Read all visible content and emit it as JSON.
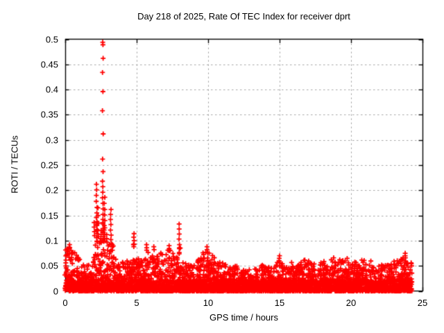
{
  "chart_data": {
    "type": "scatter",
    "title": "Day 218 of 2025, Rate Of TEC Index for receiver dprt",
    "xlabel": "GPS time / hours",
    "ylabel": "ROTI / TECUs",
    "xlim": [
      0,
      25
    ],
    "ylim": [
      0,
      0.5
    ],
    "xticks": [
      0,
      5,
      10,
      15,
      20,
      25
    ],
    "xtick_labels": [
      "0",
      "5",
      "10",
      "15",
      "20",
      "25"
    ],
    "yticks": [
      0,
      0.05,
      0.1,
      0.15,
      0.2,
      0.25,
      0.3,
      0.35,
      0.4,
      0.45,
      0.5
    ],
    "ytick_labels": [
      "0",
      "0.05",
      "0.1",
      "0.15",
      "0.2",
      "0.25",
      "0.3",
      "0.35",
      "0.4",
      "0.45",
      "0.5"
    ],
    "grid": true,
    "grid_style": "dashed",
    "legend": "none",
    "marker_symbol": "+",
    "marker_color": "#ff0000",
    "grid_color": "#a6a6a6",
    "axis_color": "#000000",
    "data_extent_hours": [
      0,
      24.25
    ],
    "dense_band": {
      "description": "Continuous dense scatter of ROTI values for all epochs/satellites; solid from 0 up to roughly half the envelope, thinning toward the envelope top.",
      "envelope": [
        [
          0.0,
          0.07
        ],
        [
          0.1,
          0.085
        ],
        [
          0.3,
          0.09
        ],
        [
          0.5,
          0.08
        ],
        [
          0.7,
          0.075
        ],
        [
          0.9,
          0.07
        ],
        [
          1.1,
          0.06
        ],
        [
          1.4,
          0.05
        ],
        [
          1.7,
          0.055
        ],
        [
          1.9,
          0.075
        ],
        [
          2.05,
          0.12
        ],
        [
          2.2,
          0.15
        ],
        [
          2.35,
          0.12
        ],
        [
          2.5,
          0.1
        ],
        [
          2.63,
          0.14
        ],
        [
          2.75,
          0.12
        ],
        [
          2.9,
          0.1
        ],
        [
          3.05,
          0.09
        ],
        [
          3.2,
          0.11
        ],
        [
          3.35,
          0.09
        ],
        [
          3.5,
          0.065
        ],
        [
          3.8,
          0.055
        ],
        [
          4.1,
          0.06
        ],
        [
          4.4,
          0.055
        ],
        [
          4.65,
          0.07
        ],
        [
          4.8,
          0.09
        ],
        [
          4.95,
          0.075
        ],
        [
          5.2,
          0.06
        ],
        [
          5.5,
          0.06
        ],
        [
          5.7,
          0.085
        ],
        [
          5.9,
          0.065
        ],
        [
          6.2,
          0.08
        ],
        [
          6.4,
          0.065
        ],
        [
          6.6,
          0.08
        ],
        [
          6.9,
          0.07
        ],
        [
          7.1,
          0.08
        ],
        [
          7.3,
          0.085
        ],
        [
          7.5,
          0.075
        ],
        [
          7.7,
          0.065
        ],
        [
          7.9,
          0.08
        ],
        [
          8.0,
          0.085
        ],
        [
          8.2,
          0.065
        ],
        [
          8.5,
          0.05
        ],
        [
          8.8,
          0.05
        ],
        [
          9.1,
          0.055
        ],
        [
          9.4,
          0.065
        ],
        [
          9.7,
          0.08
        ],
        [
          9.9,
          0.085
        ],
        [
          10.1,
          0.08
        ],
        [
          10.3,
          0.07
        ],
        [
          10.6,
          0.06
        ],
        [
          10.9,
          0.055
        ],
        [
          11.2,
          0.05
        ],
        [
          11.5,
          0.045
        ],
        [
          11.8,
          0.05
        ],
        [
          12.1,
          0.045
        ],
        [
          12.4,
          0.04
        ],
        [
          12.7,
          0.045
        ],
        [
          13.0,
          0.05
        ],
        [
          13.3,
          0.045
        ],
        [
          13.6,
          0.05
        ],
        [
          13.9,
          0.055
        ],
        [
          14.2,
          0.045
        ],
        [
          14.5,
          0.05
        ],
        [
          14.8,
          0.055
        ],
        [
          15.0,
          0.065
        ],
        [
          15.2,
          0.055
        ],
        [
          15.5,
          0.05
        ],
        [
          15.8,
          0.055
        ],
        [
          16.1,
          0.06
        ],
        [
          16.4,
          0.055
        ],
        [
          16.6,
          0.06
        ],
        [
          16.9,
          0.065
        ],
        [
          17.2,
          0.055
        ],
        [
          17.5,
          0.06
        ],
        [
          17.8,
          0.055
        ],
        [
          18.1,
          0.06
        ],
        [
          18.4,
          0.055
        ],
        [
          18.7,
          0.065
        ],
        [
          19.0,
          0.055
        ],
        [
          19.3,
          0.06
        ],
        [
          19.6,
          0.065
        ],
        [
          19.9,
          0.055
        ],
        [
          20.2,
          0.06
        ],
        [
          20.5,
          0.055
        ],
        [
          20.8,
          0.06
        ],
        [
          21.1,
          0.055
        ],
        [
          21.4,
          0.06
        ],
        [
          21.7,
          0.055
        ],
        [
          22.0,
          0.055
        ],
        [
          22.3,
          0.05
        ],
        [
          22.6,
          0.055
        ],
        [
          22.9,
          0.055
        ],
        [
          23.2,
          0.06
        ],
        [
          23.5,
          0.065
        ],
        [
          23.8,
          0.07
        ],
        [
          24.0,
          0.065
        ],
        [
          24.25,
          0.055
        ]
      ]
    },
    "outlier_spikes": [
      {
        "hour": 0.3,
        "values": [
          0.092,
          0.087
        ]
      },
      {
        "hour": 2.05,
        "values": [
          0.136,
          0.127,
          0.118,
          0.11
        ]
      },
      {
        "hour": 2.2,
        "values": [
          0.212,
          0.201,
          0.19,
          0.178,
          0.166,
          0.155,
          0.146,
          0.138,
          0.13,
          0.122,
          0.114,
          0.106,
          0.099
        ]
      },
      {
        "hour": 2.3,
        "values": [
          0.165,
          0.15,
          0.135,
          0.12,
          0.108
        ]
      },
      {
        "hour": 2.5,
        "values": [
          0.12,
          0.112,
          0.104,
          0.096
        ]
      },
      {
        "hour": 2.63,
        "values": [
          0.494,
          0.489,
          0.462,
          0.434,
          0.396,
          0.358,
          0.312,
          0.262,
          0.237,
          0.218,
          0.207,
          0.196,
          0.185,
          0.174,
          0.163,
          0.152,
          0.142,
          0.133,
          0.124,
          0.116,
          0.108,
          0.101
        ]
      },
      {
        "hour": 2.75,
        "values": [
          0.186,
          0.174,
          0.162,
          0.151,
          0.14,
          0.13,
          0.121,
          0.112,
          0.104
        ]
      },
      {
        "hour": 2.9,
        "values": [
          0.112,
          0.104,
          0.097
        ]
      },
      {
        "hour": 3.2,
        "values": [
          0.162,
          0.152,
          0.142,
          0.132,
          0.121,
          0.111,
          0.102,
          0.094
        ]
      },
      {
        "hour": 4.8,
        "values": [
          0.114,
          0.107,
          0.1,
          0.093
        ]
      },
      {
        "hour": 5.7,
        "values": [
          0.092,
          0.086
        ]
      },
      {
        "hour": 6.2,
        "values": [
          0.088,
          0.082
        ]
      },
      {
        "hour": 7.3,
        "values": [
          0.09,
          0.084
        ]
      },
      {
        "hour": 7.98,
        "values": [
          0.133,
          0.123,
          0.113,
          0.103
        ]
      },
      {
        "hour": 8.02,
        "values": [
          0.092,
          0.086
        ]
      },
      {
        "hour": 9.95,
        "values": [
          0.088,
          0.082
        ]
      },
      {
        "hour": 15.0,
        "values": [
          0.07,
          0.065
        ]
      },
      {
        "hour": 23.78,
        "values": [
          0.075,
          0.07,
          0.066
        ]
      }
    ]
  }
}
